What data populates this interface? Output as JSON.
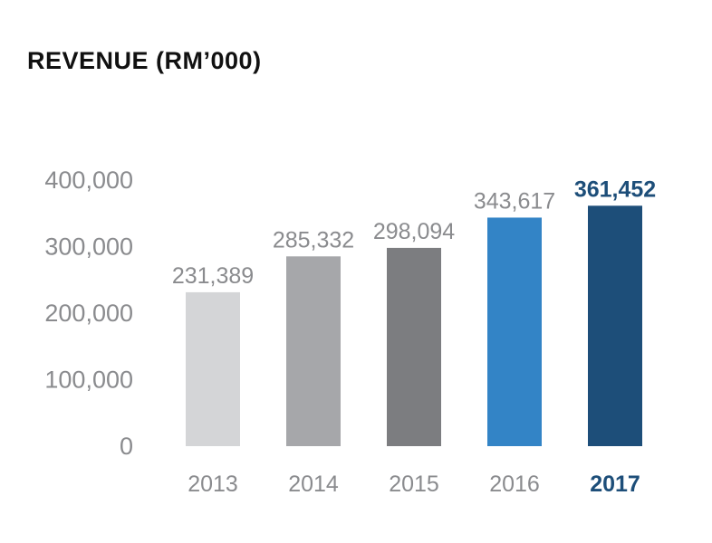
{
  "chart_data": {
    "type": "bar",
    "title": "REVENUE (RM’000)",
    "xlabel": "",
    "ylabel": "",
    "categories": [
      "2013",
      "2014",
      "2015",
      "2016",
      "2017"
    ],
    "values": [
      231389,
      285332,
      298094,
      343617,
      361452
    ],
    "value_labels": [
      "231,389",
      "285,332",
      "298,094",
      "343,617",
      "361,452"
    ],
    "yticks": [
      0,
      100000,
      200000,
      300000,
      400000
    ],
    "ytick_labels": [
      "0",
      "100,000",
      "200,000",
      "300,000",
      "400,000"
    ],
    "ylim": [
      0,
      400000
    ],
    "grid": false,
    "legend": "none",
    "bar_colors": [
      "#d4d5d7",
      "#a6a7aa",
      "#7c7d80",
      "#3384c6",
      "#1d4e79"
    ],
    "highlight_index": 4,
    "highlight_color": "#1d4e79",
    "label_color": "#8a8b8e"
  }
}
